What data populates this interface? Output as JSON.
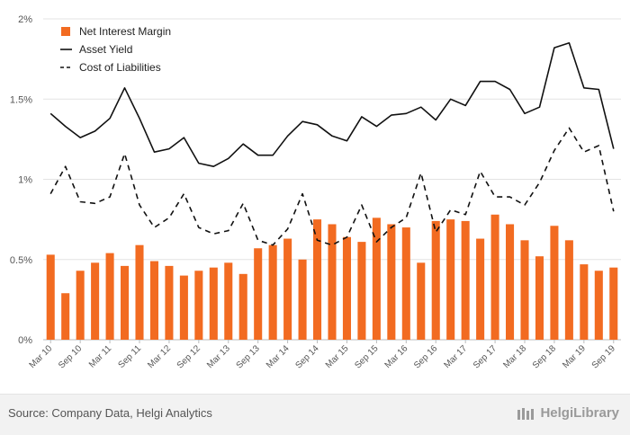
{
  "chart_data": {
    "type": "bar",
    "categories": [
      "Mar 10",
      "Jun 10",
      "Sep 10",
      "Dec 10",
      "Mar 11",
      "Jun 11",
      "Sep 11",
      "Dec 11",
      "Mar 12",
      "Jun 12",
      "Sep 12",
      "Dec 12",
      "Mar 13",
      "Jun 13",
      "Sep 13",
      "Dec 13",
      "Mar 14",
      "Jun 14",
      "Sep 14",
      "Dec 14",
      "Mar 15",
      "Jun 15",
      "Sep 15",
      "Dec 15",
      "Mar 16",
      "Jun 16",
      "Sep 16",
      "Dec 16",
      "Mar 17",
      "Jun 17",
      "Sep 17",
      "Dec 17",
      "Mar 18",
      "Jun 18",
      "Sep 18",
      "Dec 18",
      "Mar 19",
      "Jun 19",
      "Sep 19"
    ],
    "x_tick_labels": [
      "Mar 10",
      "Sep 10",
      "Mar 11",
      "Sep 11",
      "Mar 12",
      "Sep 12",
      "Mar 13",
      "Sep 13",
      "Mar 14",
      "Sep 14",
      "Mar 15",
      "Sep 15",
      "Mar 16",
      "Sep 16",
      "Mar 17",
      "Sep 17",
      "Mar 18",
      "Sep 18",
      "Mar 19",
      "Sep 19"
    ],
    "y_ticks": [
      "0%",
      "0.5%",
      "1%",
      "1.5%",
      "2%"
    ],
    "ylim": [
      0,
      2
    ],
    "grid": true,
    "legend_position": "top-left",
    "series": [
      {
        "name": "Net Interest Margin",
        "kind": "bar",
        "color": "#f26b21",
        "values": [
          0.53,
          0.29,
          0.43,
          0.48,
          0.54,
          0.46,
          0.59,
          0.49,
          0.46,
          0.4,
          0.43,
          0.45,
          0.48,
          0.41,
          0.57,
          0.59,
          0.63,
          0.5,
          0.75,
          0.72,
          0.64,
          0.61,
          0.76,
          0.72,
          0.7,
          0.48,
          0.74,
          0.75,
          0.74,
          0.63,
          0.78,
          0.72,
          0.62,
          0.52,
          0.71,
          0.62,
          0.47,
          0.43,
          0.45
        ]
      },
      {
        "name": "Asset Yield",
        "kind": "line",
        "style": "solid",
        "color": "#111111",
        "values": [
          1.41,
          1.33,
          1.26,
          1.3,
          1.38,
          1.57,
          1.38,
          1.17,
          1.19,
          1.26,
          1.1,
          1.08,
          1.13,
          1.22,
          1.15,
          1.15,
          1.27,
          1.36,
          1.34,
          1.27,
          1.24,
          1.39,
          1.33,
          1.4,
          1.41,
          1.45,
          1.37,
          1.5,
          1.46,
          1.61,
          1.61,
          1.56,
          1.41,
          1.45,
          1.82,
          1.85,
          1.57,
          1.56,
          1.19
        ]
      },
      {
        "name": "Cost of Liabilities",
        "kind": "line",
        "style": "dashed",
        "color": "#111111",
        "values": [
          0.91,
          1.08,
          0.86,
          0.85,
          0.89,
          1.16,
          0.84,
          0.7,
          0.76,
          0.91,
          0.7,
          0.66,
          0.68,
          0.85,
          0.62,
          0.59,
          0.69,
          0.91,
          0.62,
          0.59,
          0.64,
          0.84,
          0.61,
          0.7,
          0.76,
          1.04,
          0.67,
          0.81,
          0.78,
          1.05,
          0.89,
          0.89,
          0.84,
          0.98,
          1.18,
          1.32,
          1.17,
          1.21,
          0.8
        ]
      }
    ]
  },
  "footer": {
    "source": "Source: Company Data, Helgi Analytics",
    "brand": "HelgiLibrary"
  }
}
